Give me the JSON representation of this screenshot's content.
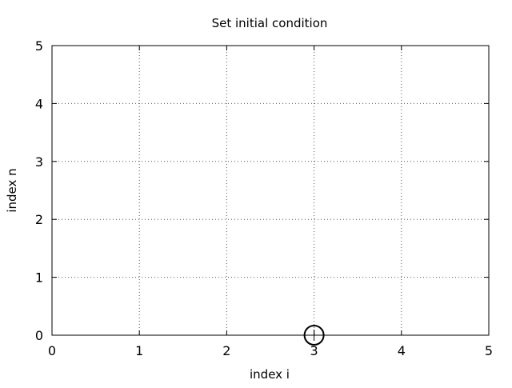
{
  "chart_data": {
    "type": "scatter",
    "title": "Set initial condition",
    "xlabel": "index i",
    "ylabel": "index n",
    "xlim": [
      0,
      5
    ],
    "ylim": [
      0,
      5
    ],
    "xticks": [
      "0",
      "1",
      "2",
      "3",
      "4",
      "5"
    ],
    "yticks": [
      "0",
      "1",
      "2",
      "3",
      "4",
      "5"
    ],
    "grid": true,
    "series": [
      {
        "marker": "open-circle-with-crosshair",
        "color": "#000000",
        "points": [
          {
            "x": 3,
            "y": 0
          }
        ]
      }
    ]
  }
}
